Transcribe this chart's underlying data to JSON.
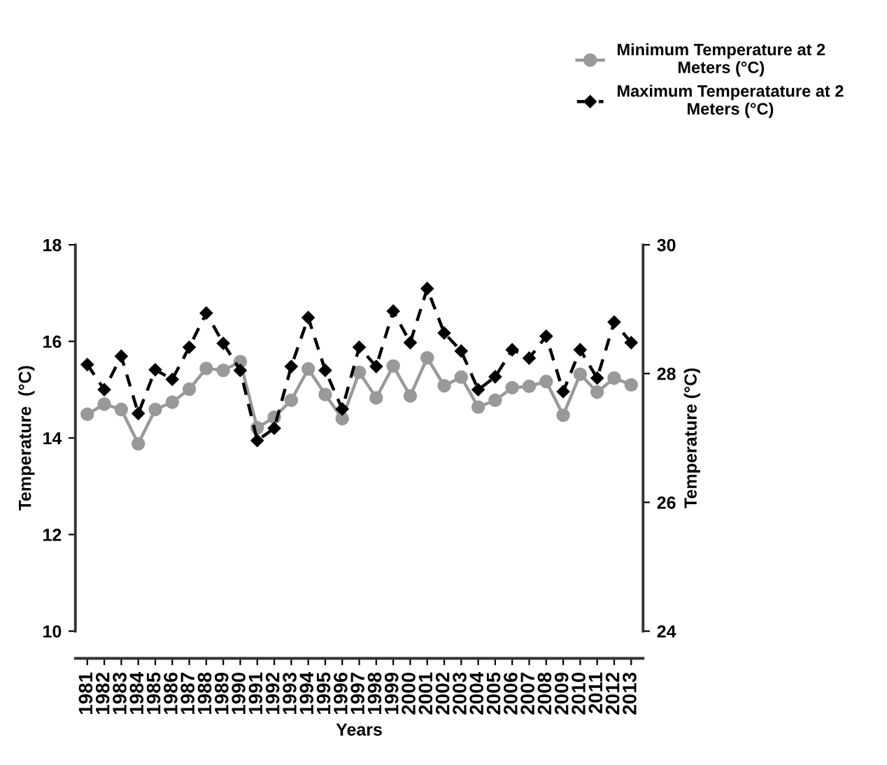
{
  "chart_data": {
    "type": "line",
    "xlabel": "Years",
    "ylabel": "Temperature  (°C)",
    "y2label": "Temperature (°C)",
    "categories": [
      "1981",
      "1982",
      "1983",
      "1984",
      "1985",
      "1986",
      "1987",
      "1988",
      "1989",
      "1990",
      "1991",
      "1992",
      "1993",
      "1994",
      "1995",
      "1996",
      "1997",
      "1998",
      "1999",
      "2000",
      "2001",
      "2002",
      "2003",
      "2004",
      "2005",
      "2006",
      "2007",
      "2008",
      "2009",
      "2010",
      "2011",
      "2012",
      "2013"
    ],
    "series": [
      {
        "name": "Minimum Temperature at 2 Meters (°C)",
        "color": "#999999",
        "marker": "circle",
        "line_style": "solid",
        "values": [
          14.49,
          14.7,
          14.59,
          13.88,
          14.59,
          14.74,
          15.01,
          15.44,
          15.4,
          15.58,
          14.21,
          14.43,
          14.78,
          15.43,
          14.9,
          14.4,
          15.36,
          14.83,
          15.49,
          14.87,
          15.66,
          15.08,
          15.26,
          14.64,
          14.78,
          15.04,
          15.07,
          15.17,
          14.47,
          15.32,
          14.95,
          15.24,
          15.1
        ]
      },
      {
        "name": "Maximum Temperatature at 2 Meters (°C)",
        "color": "#000000",
        "marker": "diamond",
        "line_style": "dashed",
        "axis": "y2",
        "values": [
          28.14,
          27.75,
          28.27,
          27.38,
          28.06,
          27.91,
          28.41,
          28.94,
          28.47,
          28.05,
          26.96,
          27.15,
          28.11,
          28.87,
          28.05,
          27.45,
          28.41,
          28.11,
          28.97,
          28.48,
          29.32,
          28.63,
          28.35,
          27.75,
          27.95,
          28.37,
          28.24,
          28.58,
          27.72,
          28.37,
          27.93,
          28.8,
          28.48
        ]
      }
    ],
    "ylim": [
      10,
      18
    ],
    "yticks": [
      10,
      12,
      14,
      16,
      18
    ],
    "y2lim": [
      24,
      30
    ],
    "y2ticks": [
      24,
      26,
      28,
      30
    ],
    "grid": false,
    "legend": "top right"
  }
}
